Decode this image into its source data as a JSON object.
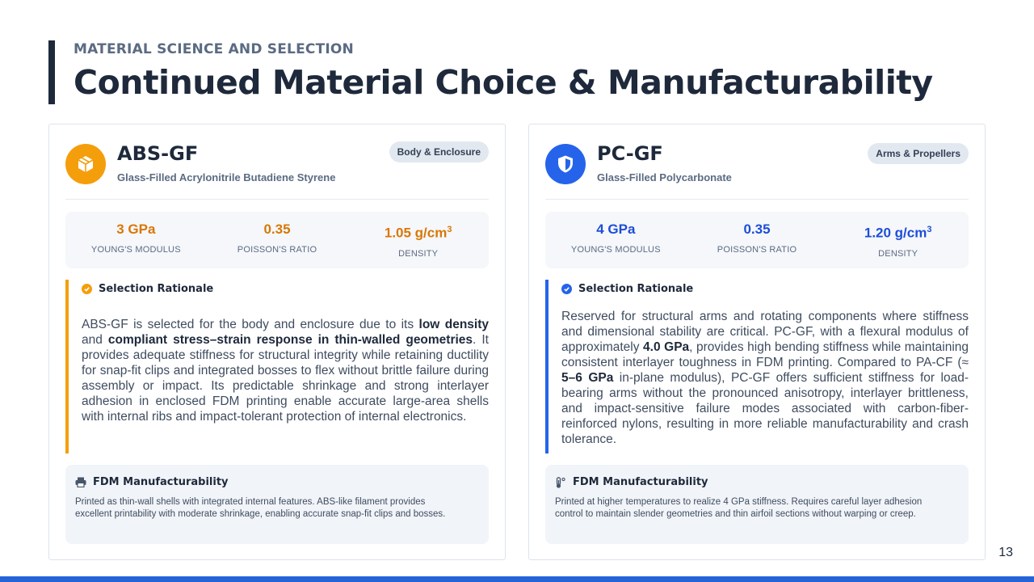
{
  "header": {
    "eyebrow": "MATERIAL SCIENCE AND SELECTION",
    "title": "Continued Material Choice & Manufacturability"
  },
  "colors": {
    "navy": "#1e293b",
    "orange_accent": "#f59e0b",
    "blue_accent": "#2563eb",
    "bottom_bar": "#2563d9"
  },
  "cards": [
    {
      "icon": "cube-icon",
      "name": "ABS-GF",
      "full_name": "Glass-Filled Acrylonitrile Butadiene Styrene",
      "tag": "Body & Enclosure",
      "props": [
        {
          "value": "3 GPa",
          "label": "YOUNG'S MODULUS"
        },
        {
          "value": "0.35",
          "label": "POISSON'S RATIO"
        },
        {
          "value": "1.05 g/cm",
          "unit_sup": "3",
          "label": "DENSITY"
        }
      ],
      "rationale_title": "Selection Rationale",
      "rationale_parts": [
        "ABS-GF is selected for the body and enclosure due to its ",
        "low density",
        " and ",
        "compliant stress–strain response in thin-walled geometries",
        ". It provides adequate stiffness for structural integrity while retaining ductility for snap-fit clips and integrated bosses to flex without brittle failure during assembly or impact. Its predictable shrinkage and strong interlayer adhesion in enclosed FDM printing enable accurate large-area shells with internal ribs and impact-tolerant protection of internal electronics."
      ],
      "mfg_icon": "printer-icon",
      "mfg_title": "FDM Manufacturability",
      "mfg_text": "Printed as thin-wall shells with integrated internal features. ABS-like filament provides excellent printability with moderate shrinkage, enabling accurate snap-fit clips and bosses."
    },
    {
      "icon": "shield-icon",
      "name": "PC-GF",
      "full_name": "Glass-Filled Polycarbonate",
      "tag": "Arms & Propellers",
      "props": [
        {
          "value": "4 GPa",
          "label": "YOUNG'S MODULUS"
        },
        {
          "value": "0.35",
          "label": "POISSON'S RATIO"
        },
        {
          "value": "1.20 g/cm",
          "unit_sup": "3",
          "label": "DENSITY"
        }
      ],
      "rationale_title": "Selection Rationale",
      "rationale_parts": [
        "Reserved for structural arms and rotating components where stiffness and dimensional stability are critical. PC-GF, with a flexural modulus of approximately ",
        "4.0 GPa",
        ", provides high bending stiffness while maintaining consistent interlayer toughness in FDM printing. Compared to PA-CF (≈ ",
        "5–6 GPa",
        " in-plane modulus), PC-GF offers sufficient stiffness for load-bearing arms without the pronounced anisotropy, interlayer brittleness, and impact-sensitive failure modes associated with carbon-fiber-reinforced nylons, resulting in more reliable manufacturability and crash tolerance."
      ],
      "mfg_icon": "thermometer-icon",
      "mfg_title": "FDM Manufacturability",
      "mfg_text": "Printed at higher temperatures to realize 4 GPa stiffness. Requires careful layer adhesion control to maintain slender geometries and thin airfoil sections without warping or creep."
    }
  ],
  "page_number": "13"
}
